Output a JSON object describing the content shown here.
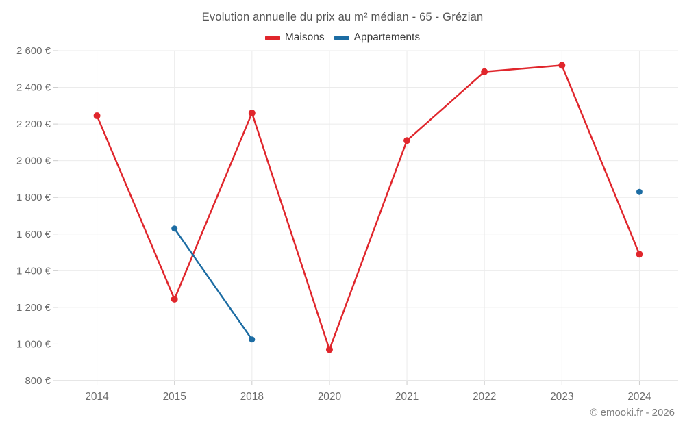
{
  "title": "Evolution annuelle du prix au m² médian - 65 - Grézian",
  "attribution": "© emooki.fr - 2026",
  "legend": [
    {
      "label": "Maisons",
      "color": "#e0262c"
    },
    {
      "label": "Appartements",
      "color": "#1c6ca3"
    }
  ],
  "chart_data": {
    "type": "line",
    "title": "Evolution annuelle du prix au m² médian - 65 - Grézian",
    "categories": [
      "2014",
      "2015",
      "2018",
      "2020",
      "2021",
      "2022",
      "2023",
      "2024"
    ],
    "series": [
      {
        "name": "Maisons",
        "color": "#e0262c",
        "values": [
          2245,
          1245,
          2260,
          970,
          2110,
          2485,
          2520,
          1490
        ]
      },
      {
        "name": "Appartements",
        "color": "#1c6ca3",
        "values": [
          null,
          1630,
          1025,
          null,
          null,
          null,
          null,
          1830
        ]
      }
    ],
    "xlabel": "",
    "ylabel": "",
    "ylim": [
      800,
      2600
    ],
    "y_ticks": [
      {
        "value": 800,
        "label": "800 €"
      },
      {
        "value": 1000,
        "label": "1 000 €"
      },
      {
        "value": 1200,
        "label": "1 200 €"
      },
      {
        "value": 1400,
        "label": "1 400 €"
      },
      {
        "value": 1600,
        "label": "1 600 €"
      },
      {
        "value": 1800,
        "label": "1 800 €"
      },
      {
        "value": 2000,
        "label": "2 000 €"
      },
      {
        "value": 2200,
        "label": "2 200 €"
      },
      {
        "value": 2400,
        "label": "2 400 €"
      },
      {
        "value": 2600,
        "label": "2 600 €"
      }
    ],
    "grid": true,
    "legend_position": "top",
    "colors": {
      "grid": "#ebebeb",
      "axis": "#cccccc",
      "tick_label": "#6b6b6b"
    }
  }
}
